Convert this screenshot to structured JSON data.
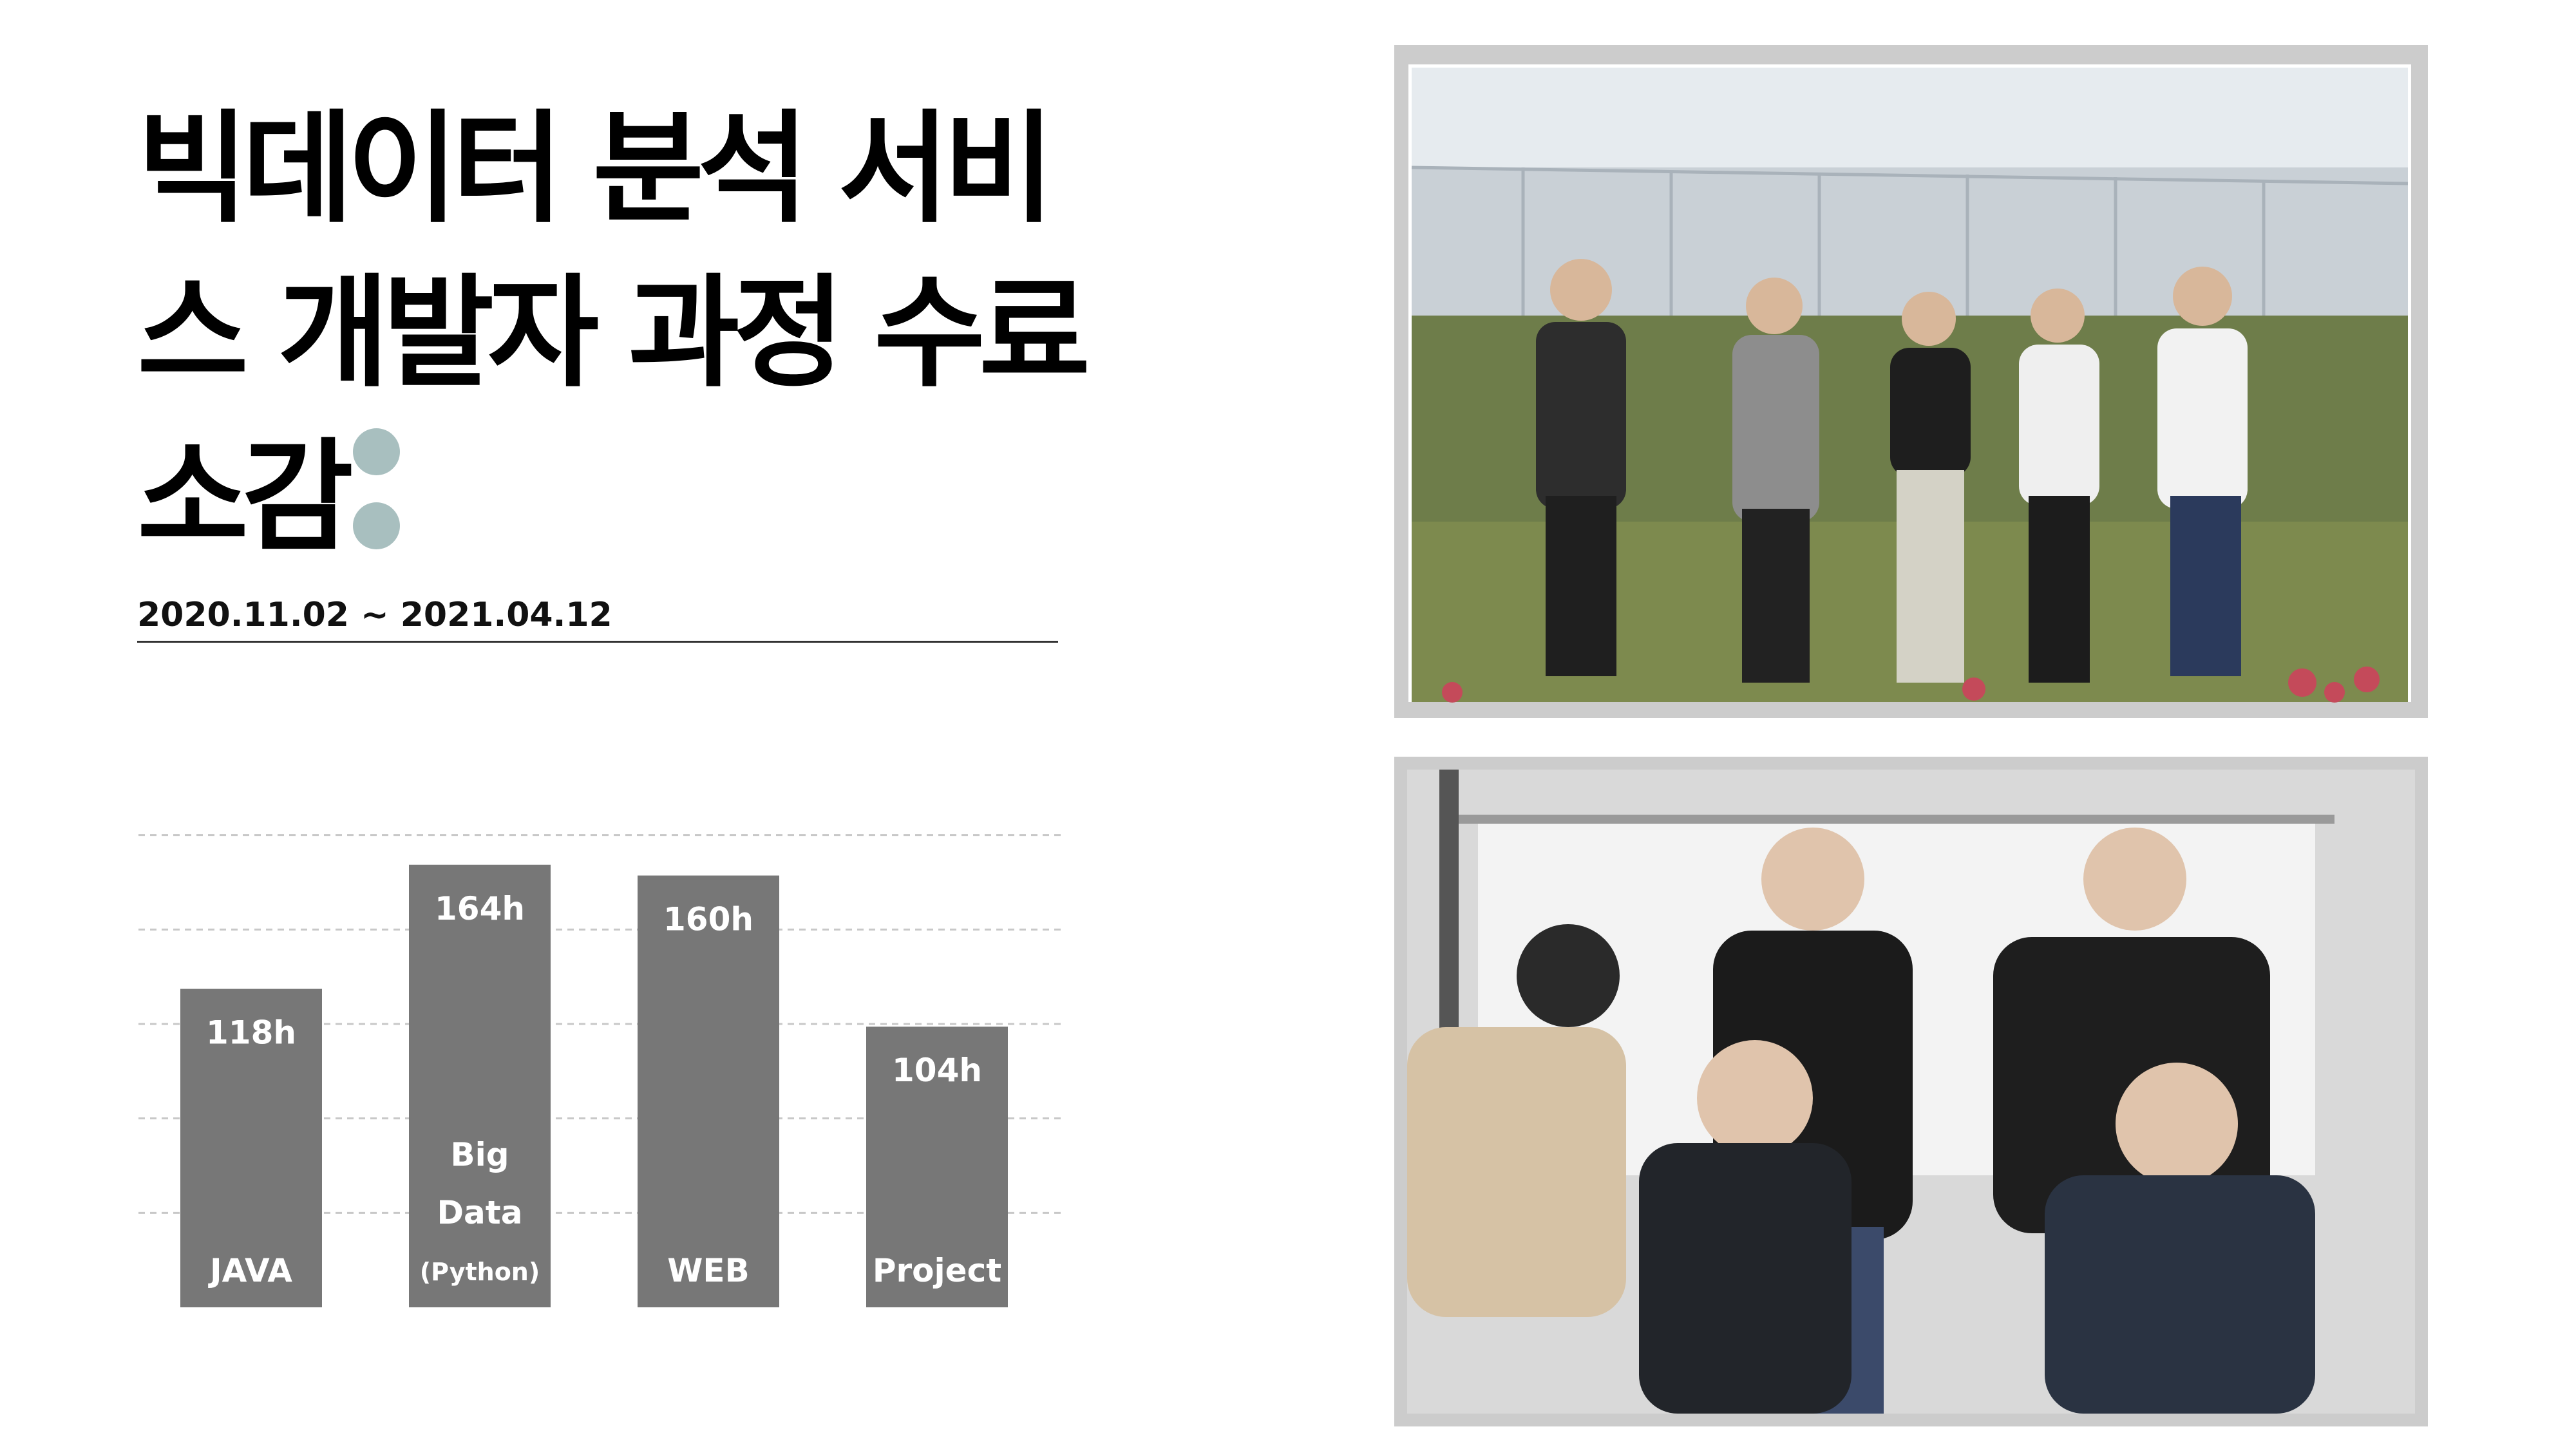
{
  "slide": {
    "title_lines": [
      "빅데이터 분석 서비",
      "스 개발자 과정 수료",
      "소감"
    ],
    "date_range": "2020.11.02 ~ 2021.04.12",
    "accent_color": "#a8bfbf"
  },
  "chart_data": {
    "type": "bar",
    "categories": [
      "JAVA",
      "Big Data (Python)",
      "WEB",
      "Project"
    ],
    "category_lines": [
      [
        "JAVA"
      ],
      [
        "Big",
        "Data",
        "(Python)"
      ],
      [
        "WEB"
      ],
      [
        "Project"
      ]
    ],
    "values": [
      118,
      164,
      160,
      104
    ],
    "value_labels": [
      "118h",
      "164h",
      "160h",
      "104h"
    ],
    "unit": "h",
    "ylim": [
      0,
      210
    ],
    "grid": true,
    "grid_style": "dashed",
    "bar_color": "#777777",
    "label_color": "#ffffff"
  },
  "photos": {
    "top": {
      "sky": "#e6ebef",
      "greenhouse": "#c9d0d6",
      "ground": "#7d8a4e",
      "frame": "#cccccc"
    },
    "bottom": {
      "wall": "#d9d9d9",
      "board": "#f3f3f3",
      "frame": "#cccccc"
    }
  }
}
